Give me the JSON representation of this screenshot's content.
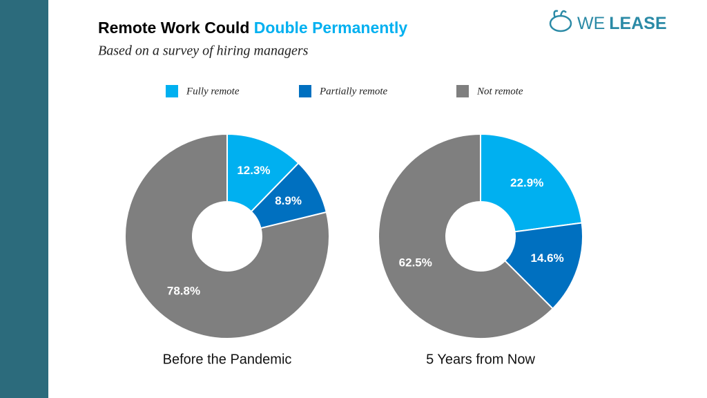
{
  "header": {
    "title": [
      "Remote Work Could",
      "Double Permanently"
    ],
    "subtitle": "Based on a survey of hiring managers",
    "logo": [
      "WE",
      "LEASE"
    ]
  },
  "legend": {
    "categories": [
      "Fully remote",
      "Partially remote",
      "Not remote"
    ],
    "colors": [
      "#00b0f0",
      "#0070c0",
      "#7f7f7f"
    ]
  },
  "chart_data": [
    {
      "type": "donut",
      "label": "Before the Pandemic",
      "values": [
        12.3,
        8.9,
        78.8
      ],
      "value_labels": [
        "12.3%",
        "8.9%",
        "78.8%"
      ]
    },
    {
      "type": "donut",
      "label": "5 Years from Now",
      "values": [
        22.9,
        14.6,
        62.5
      ],
      "value_labels": [
        "22.9%",
        "14.6%",
        "62.5%"
      ]
    }
  ]
}
